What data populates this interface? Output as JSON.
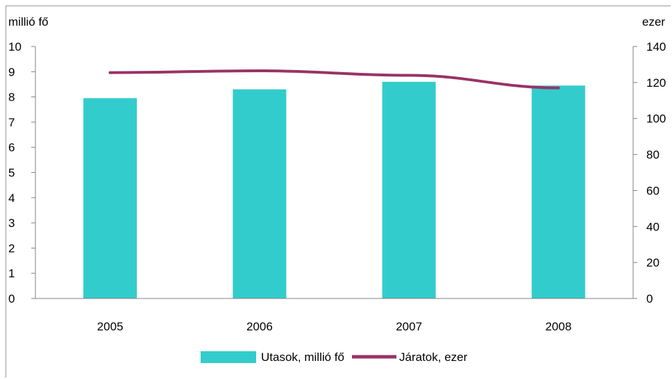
{
  "chart_data": {
    "type": "bar",
    "categories": [
      "2005",
      "2006",
      "2007",
      "2008"
    ],
    "y_left": {
      "label": "millió fő",
      "ylim": [
        0,
        10
      ],
      "ticks": [
        0,
        1,
        2,
        3,
        4,
        5,
        6,
        7,
        8,
        9,
        10
      ]
    },
    "y_right": {
      "label": "ezer",
      "ylim": [
        0,
        140
      ],
      "ticks": [
        0,
        20,
        40,
        60,
        80,
        100,
        120,
        140
      ]
    },
    "series": [
      {
        "name": "Utasok, millió fő",
        "kind": "bar",
        "axis": "left",
        "color": "#33cccc",
        "values": [
          7.95,
          8.3,
          8.6,
          8.45
        ]
      },
      {
        "name": "Járatok, ezer",
        "kind": "line",
        "axis": "right",
        "color": "#993366",
        "values": [
          125.5,
          126.5,
          124.0,
          117.0
        ]
      }
    ],
    "legend_position": "bottom",
    "grid": false
  }
}
